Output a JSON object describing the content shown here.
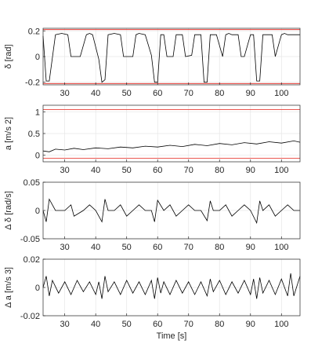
{
  "figure": {
    "xlabel": "Time [s]",
    "xlim": [
      23,
      106
    ],
    "xticks": [
      30,
      40,
      50,
      60,
      70,
      80,
      90,
      100
    ],
    "limit_color": "#e8403a",
    "signal_color": "#000000"
  },
  "chart_data": [
    {
      "type": "line",
      "ylabel": "δ [rad]",
      "ylim": [
        -0.22,
        0.22
      ],
      "yticks": [
        -0.2,
        0,
        0.2
      ],
      "ytick_labels": [
        "-0.2",
        "0",
        "0.2"
      ],
      "limits": [
        0.21,
        -0.21
      ],
      "grid": true,
      "series": [
        {
          "x": [
            23,
            24,
            25,
            27,
            29,
            31,
            32,
            33,
            35,
            37,
            38,
            39,
            41,
            42,
            43,
            44,
            46,
            48,
            49,
            50,
            52,
            53,
            54,
            56,
            58,
            59,
            60,
            61,
            62,
            63,
            65,
            66,
            67,
            68,
            69,
            71,
            72,
            74,
            75,
            76,
            77,
            78,
            79,
            81,
            82,
            83,
            84,
            86,
            87,
            88,
            90,
            91,
            92,
            93,
            94,
            96,
            97,
            98,
            100,
            101,
            102,
            104,
            106
          ],
          "y": [
            0.16,
            -0.19,
            -0.19,
            0.17,
            0.18,
            0.17,
            0.0,
            0.0,
            0.0,
            0.17,
            0.18,
            0.17,
            -0.02,
            -0.2,
            -0.18,
            0.17,
            0.18,
            0.17,
            0.0,
            0.0,
            0.0,
            0.17,
            0.18,
            0.17,
            0.01,
            -0.2,
            -0.2,
            0.17,
            0.17,
            0.0,
            0.0,
            0.17,
            0.17,
            0.17,
            0.0,
            0.01,
            0.17,
            0.17,
            -0.2,
            -0.2,
            0.17,
            0.17,
            0.17,
            0.0,
            0.17,
            0.18,
            0.17,
            0.17,
            0.0,
            0.0,
            0.17,
            0.17,
            -0.19,
            -0.19,
            0.17,
            0.17,
            0.17,
            0.0,
            0.17,
            0.18,
            0.17,
            0.17,
            0.17
          ]
        }
      ]
    },
    {
      "type": "line",
      "ylabel": "a [m/s 2]",
      "ylim": [
        -0.15,
        1.15
      ],
      "yticks": [
        0,
        0.5,
        1
      ],
      "ytick_labels": [
        "0",
        "0.5",
        "1"
      ],
      "limits": [
        1.05,
        -0.07
      ],
      "grid": true,
      "series": [
        {
          "x": [
            23,
            25,
            27,
            30,
            33,
            36,
            40,
            44,
            48,
            52,
            56,
            60,
            64,
            68,
            72,
            76,
            80,
            84,
            88,
            92,
            96,
            100,
            104,
            106
          ],
          "y": [
            0.1,
            0.08,
            0.14,
            0.12,
            0.16,
            0.13,
            0.17,
            0.15,
            0.19,
            0.17,
            0.21,
            0.19,
            0.23,
            0.2,
            0.25,
            0.22,
            0.27,
            0.24,
            0.29,
            0.26,
            0.31,
            0.28,
            0.33,
            0.3
          ]
        }
      ]
    },
    {
      "type": "line",
      "ylabel": "Δ δ [rad/s]",
      "ylim": [
        -0.05,
        0.05
      ],
      "yticks": [
        -0.05,
        0,
        0.05
      ],
      "ytick_labels": [
        "-0.05",
        "0",
        "0.05"
      ],
      "limits": [],
      "grid": true,
      "series": [
        {
          "x": [
            23,
            24,
            25,
            27,
            30,
            32,
            33,
            36,
            38,
            40,
            42,
            43,
            44,
            46,
            48,
            50,
            52,
            54,
            56,
            58,
            59,
            60,
            62,
            64,
            66,
            68,
            70,
            72,
            74,
            76,
            77,
            78,
            80,
            82,
            84,
            86,
            88,
            90,
            92,
            93,
            94,
            96,
            98,
            100,
            102,
            104,
            106
          ],
          "y": [
            0.0,
            -0.02,
            0.02,
            0.0,
            0.0,
            0.01,
            -0.01,
            0.0,
            0.01,
            0.0,
            -0.02,
            0.02,
            0.0,
            0.0,
            0.01,
            -0.01,
            0.0,
            0.01,
            0.0,
            0.0,
            -0.02,
            0.018,
            0.0,
            0.01,
            -0.01,
            0.0,
            0.01,
            0.0,
            0.0,
            -0.018,
            0.017,
            0.0,
            0.0,
            0.01,
            -0.01,
            0.0,
            0.01,
            0.0,
            -0.022,
            0.017,
            0.0,
            0.01,
            -0.01,
            0.0,
            0.01,
            0.0,
            0.0
          ]
        }
      ]
    },
    {
      "type": "line",
      "ylabel": "Δ a [m/s 3]",
      "ylim": [
        -0.02,
        0.02
      ],
      "yticks": [
        -0.02,
        0,
        0.02
      ],
      "ytick_labels": [
        "-0.02",
        "0",
        "0.02"
      ],
      "limits": [],
      "grid": true,
      "series": [
        {
          "x": [
            23,
            24,
            25,
            26,
            28,
            30,
            32,
            34,
            36,
            38,
            40,
            41,
            42,
            43,
            44,
            46,
            48,
            50,
            52,
            54,
            56,
            58,
            59,
            60,
            61,
            62,
            64,
            66,
            68,
            70,
            72,
            74,
            76,
            77,
            78,
            80,
            82,
            84,
            86,
            88,
            90,
            91,
            92,
            93,
            94,
            96,
            98,
            100,
            102,
            103,
            104,
            106
          ],
          "y": [
            0.0,
            0.008,
            -0.006,
            0.005,
            -0.004,
            0.004,
            -0.005,
            0.005,
            -0.003,
            0.004,
            -0.005,
            0.004,
            -0.008,
            0.008,
            -0.003,
            0.004,
            -0.005,
            0.005,
            -0.004,
            0.004,
            -0.005,
            0.005,
            -0.008,
            0.007,
            -0.004,
            0.004,
            -0.005,
            0.005,
            -0.004,
            0.004,
            -0.005,
            0.004,
            -0.006,
            0.006,
            -0.003,
            0.005,
            -0.005,
            0.004,
            -0.004,
            0.005,
            -0.005,
            0.006,
            -0.008,
            0.007,
            -0.004,
            0.005,
            -0.005,
            0.006,
            -0.006,
            0.01,
            -0.006,
            0.008
          ]
        }
      ]
    }
  ]
}
